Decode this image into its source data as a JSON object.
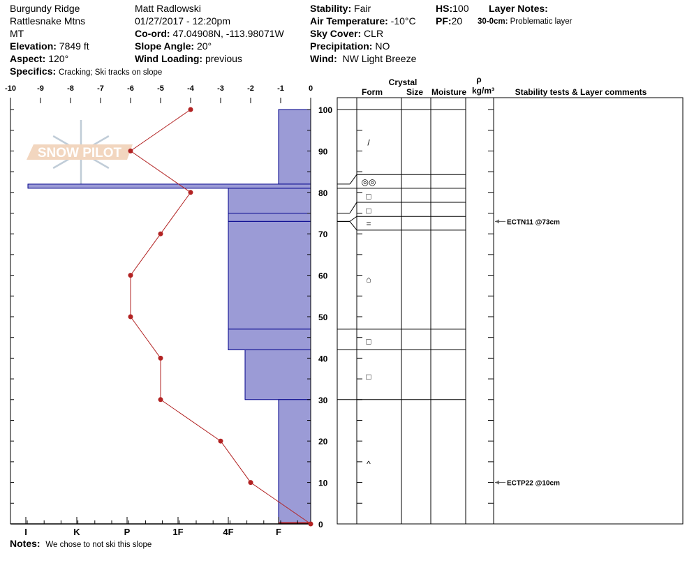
{
  "header": {
    "location": "Burgundy Ridge",
    "range": "Rattlesnake Mtns",
    "state": "MT",
    "elevation": {
      "label": "Elevation:",
      "value": "7849 ft"
    },
    "aspect": {
      "label": "Aspect:",
      "value": "120°"
    },
    "observer": "Matt Radlowski",
    "datetime": "01/27/2017 - 12:20pm",
    "coord": {
      "label": "Co-ord:",
      "value": "47.04908N, -113.98071W"
    },
    "slope_angle": {
      "label": "Slope Angle:",
      "value": "20°"
    },
    "wind_loading": {
      "label": "Wind Loading:",
      "value": "previous"
    },
    "stability": {
      "label": "Stability:",
      "value": "Fair"
    },
    "air_temp": {
      "label": "Air Temperature:",
      "value": "-10°C"
    },
    "sky_cover": {
      "label": "Sky Cover:",
      "value": "CLR"
    },
    "precipitation": {
      "label": "Precipitation:",
      "value": "NO"
    },
    "wind": {
      "label": "Wind:",
      "value": "NW Light Breeze"
    },
    "hs": {
      "label": "HS:",
      "value": "100"
    },
    "pf": {
      "label": "PF:",
      "value": "20"
    },
    "layer_notes": {
      "label": "Layer Notes:",
      "range": "30-0cm:",
      "text": "Problematic layer"
    },
    "specifics": {
      "label": "Specifics:",
      "value": "Cracking;  Ski tracks on slope"
    }
  },
  "notes": {
    "label": "Notes:",
    "value": "We chose to not ski this slope"
  },
  "logo": {
    "text": "SNOW PILOT"
  },
  "columns": {
    "crystal": "Crystal",
    "form": "Form",
    "size": "Size",
    "moisture": "Moisture",
    "rho": "ρ",
    "density_unit": "kg/m³",
    "comments": "Stability tests & Layer comments"
  },
  "colors": {
    "hardness_fill": "#9b9bd6",
    "hardness_stroke": "#00008b",
    "temperature": "#b22222"
  },
  "chart_data": {
    "type": "line",
    "temperature_axis": {
      "ticks": [
        "-10",
        "-9",
        "-8",
        "-7",
        "-6",
        "-5",
        "-4",
        "-3",
        "-2",
        "-1",
        "0"
      ],
      "range": [
        -10,
        0
      ]
    },
    "height_axis": {
      "ticks": [
        "100",
        "90",
        "80",
        "70",
        "60",
        "50",
        "40",
        "30",
        "20",
        "10",
        "0"
      ],
      "range": [
        0,
        100
      ],
      "unit": "cm"
    },
    "hardness_axis": {
      "ticks": [
        "I",
        "K",
        "P",
        "1F",
        "4F",
        "F"
      ]
    },
    "temperature_profile": [
      {
        "height": 100,
        "temp": -4
      },
      {
        "height": 90,
        "temp": -6
      },
      {
        "height": 80,
        "temp": -4
      },
      {
        "height": 70,
        "temp": -5
      },
      {
        "height": 60,
        "temp": -6
      },
      {
        "height": 50,
        "temp": -6
      },
      {
        "height": 40,
        "temp": -5
      },
      {
        "height": 30,
        "temp": -5
      },
      {
        "height": 20,
        "temp": -3
      },
      {
        "height": 10,
        "temp": -2
      },
      {
        "height": 0,
        "temp": 0
      }
    ],
    "layers": [
      {
        "top": 100,
        "bottom": 82,
        "hardness": "F",
        "form": "DF"
      },
      {
        "top": 82,
        "bottom": 81,
        "hardness": "I",
        "form": "SH"
      },
      {
        "top": 81,
        "bottom": 75,
        "hardness": "4F",
        "form": "FC"
      },
      {
        "top": 75,
        "bottom": 73,
        "hardness": "4F",
        "form": "FC"
      },
      {
        "top": 73,
        "bottom": 73,
        "hardness": "I",
        "form": "IF"
      },
      {
        "top": 73,
        "bottom": 47,
        "hardness": "4F",
        "form": "MF"
      },
      {
        "top": 47,
        "bottom": 42,
        "hardness": "4F",
        "form": "FC"
      },
      {
        "top": 42,
        "bottom": 30,
        "hardness": "4F-",
        "form": "FC"
      },
      {
        "top": 30,
        "bottom": 0,
        "hardness": "F",
        "form": "DH"
      }
    ],
    "stability_tests": [
      {
        "height": 73,
        "label": "ECTN11 @73cm"
      },
      {
        "height": 10,
        "label": "ECTP22 @10cm"
      }
    ]
  }
}
